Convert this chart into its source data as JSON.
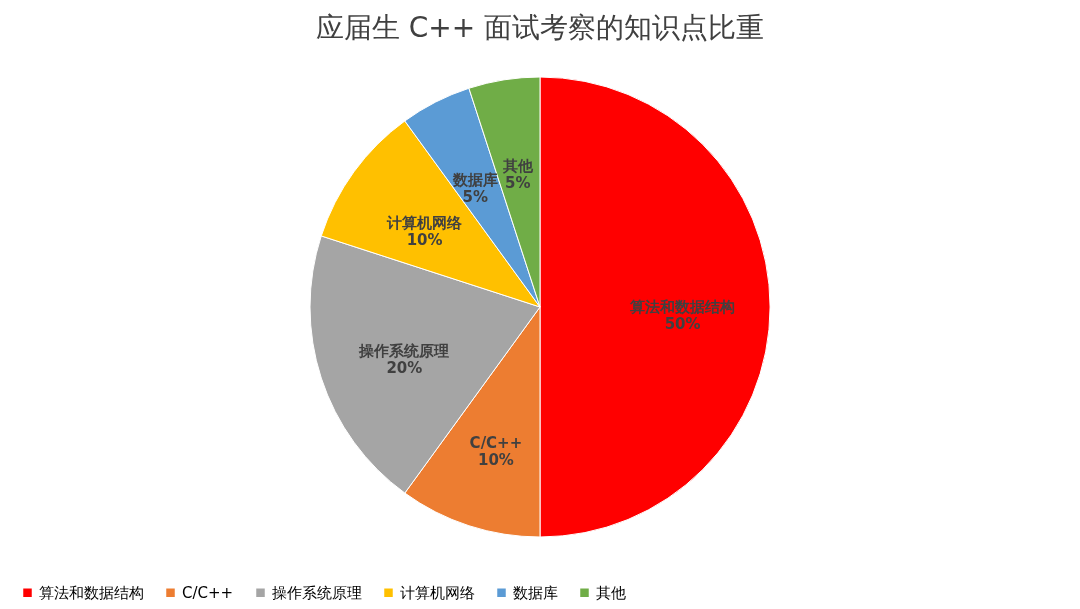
{
  "chart_data": {
    "type": "pie",
    "title": "应届生 C++ 面试考察的知识点比重",
    "categories": [
      "算法和数据结构",
      "C/C++",
      "操作系统原理",
      "计算机网络",
      "数据库",
      "其他"
    ],
    "values": [
      50,
      10,
      20,
      10,
      5,
      5
    ],
    "value_labels": [
      "50%",
      "10%",
      "20%",
      "10%",
      "5%",
      "5%"
    ],
    "colors": [
      "#ff0000",
      "#ed7d31",
      "#a5a5a5",
      "#ffc000",
      "#5b9bd5",
      "#70ad47"
    ],
    "legend": "bottom"
  }
}
